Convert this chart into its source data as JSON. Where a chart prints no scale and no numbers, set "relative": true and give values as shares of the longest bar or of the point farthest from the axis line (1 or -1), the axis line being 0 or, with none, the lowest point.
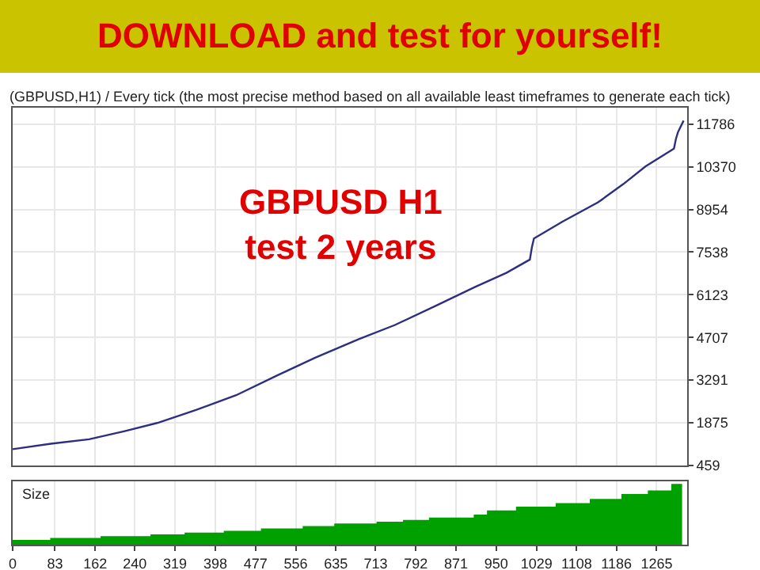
{
  "chart_data": [
    {
      "type": "line",
      "title": "DOWNLOAD and test for yourself!",
      "subtitle": "(GBPUSD,H1) / Every tick (the most precise method based on all available least timeframes to generate each tick)",
      "annotations": [
        "GBPUSD H1\ntest 2 years"
      ],
      "series": [
        {
          "color": "#2e2e80",
          "x": [
            0,
            75,
            150,
            220,
            284,
            360,
            439,
            520,
            595,
            680,
            751,
            830,
            907,
            970,
            1016,
            1020,
            1024,
            1080,
            1150,
            1200,
            1243,
            1299,
            1303,
            1307,
            1318
          ],
          "values": [
            1000,
            1180,
            1330,
            1600,
            1870,
            2300,
            2790,
            3450,
            4040,
            4650,
            5120,
            5750,
            6370,
            6850,
            7290,
            7700,
            7990,
            8550,
            9190,
            9800,
            10380,
            10970,
            11300,
            11520,
            11900
          ]
        }
      ],
      "xlim": [
        0,
        1325
      ],
      "ylim": [
        459,
        12330
      ],
      "yticks": [
        459,
        1875,
        3291,
        4707,
        6123,
        7538,
        8954,
        10370,
        11786
      ],
      "xticks": [
        {
          "value": 0,
          "label": null
        },
        {
          "value": 83,
          "label": null
        },
        {
          "value": 162,
          "label": null
        },
        {
          "value": 240,
          "label": null
        },
        {
          "value": 319,
          "label": null
        },
        {
          "value": 398,
          "label": null
        },
        {
          "value": 477,
          "label": null
        },
        {
          "value": 556,
          "label": null
        },
        {
          "value": 635,
          "label": null
        },
        {
          "value": 713,
          "label": null
        },
        {
          "value": 792,
          "label": null
        },
        {
          "value": 871,
          "label": null
        },
        {
          "value": 950,
          "label": null
        },
        {
          "value": 1029,
          "label": null
        },
        {
          "value": 1108,
          "label": null
        },
        {
          "value": 1186,
          "label": null
        },
        {
          "value": 1265,
          "label": null
        }
      ],
      "grid": true,
      "tick_labels": "y"
    },
    {
      "type": "area",
      "relative": true,
      "annotations": [
        "Size"
      ],
      "series": [
        {
          "color": "#00a000",
          "x": [
            0,
            75,
            75,
            174,
            174,
            272,
            272,
            339,
            339,
            416,
            416,
            489,
            489,
            571,
            571,
            633,
            633,
            716,
            716,
            768,
            768,
            819,
            819,
            907,
            907,
            933,
            933,
            990,
            990,
            1068,
            1068,
            1135,
            1135,
            1197,
            1197,
            1249,
            1249,
            1295,
            1295,
            1315
          ],
          "values": [
            0.07,
            0.07,
            0.1,
            0.1,
            0.13,
            0.13,
            0.16,
            0.16,
            0.19,
            0.19,
            0.22,
            0.22,
            0.26,
            0.26,
            0.3,
            0.3,
            0.34,
            0.34,
            0.37,
            0.37,
            0.4,
            0.4,
            0.44,
            0.44,
            0.49,
            0.49,
            0.56,
            0.56,
            0.62,
            0.62,
            0.68,
            0.68,
            0.75,
            0.75,
            0.83,
            0.83,
            0.89,
            0.89,
            1,
            1
          ]
        }
      ],
      "xlim": [
        0,
        1325
      ],
      "xticks": [
        0,
        83,
        162,
        240,
        319,
        398,
        477,
        556,
        635,
        713,
        792,
        871,
        950,
        1029,
        1108,
        1186,
        1265
      ],
      "grid": "x",
      "tick_labels": "x"
    }
  ]
}
